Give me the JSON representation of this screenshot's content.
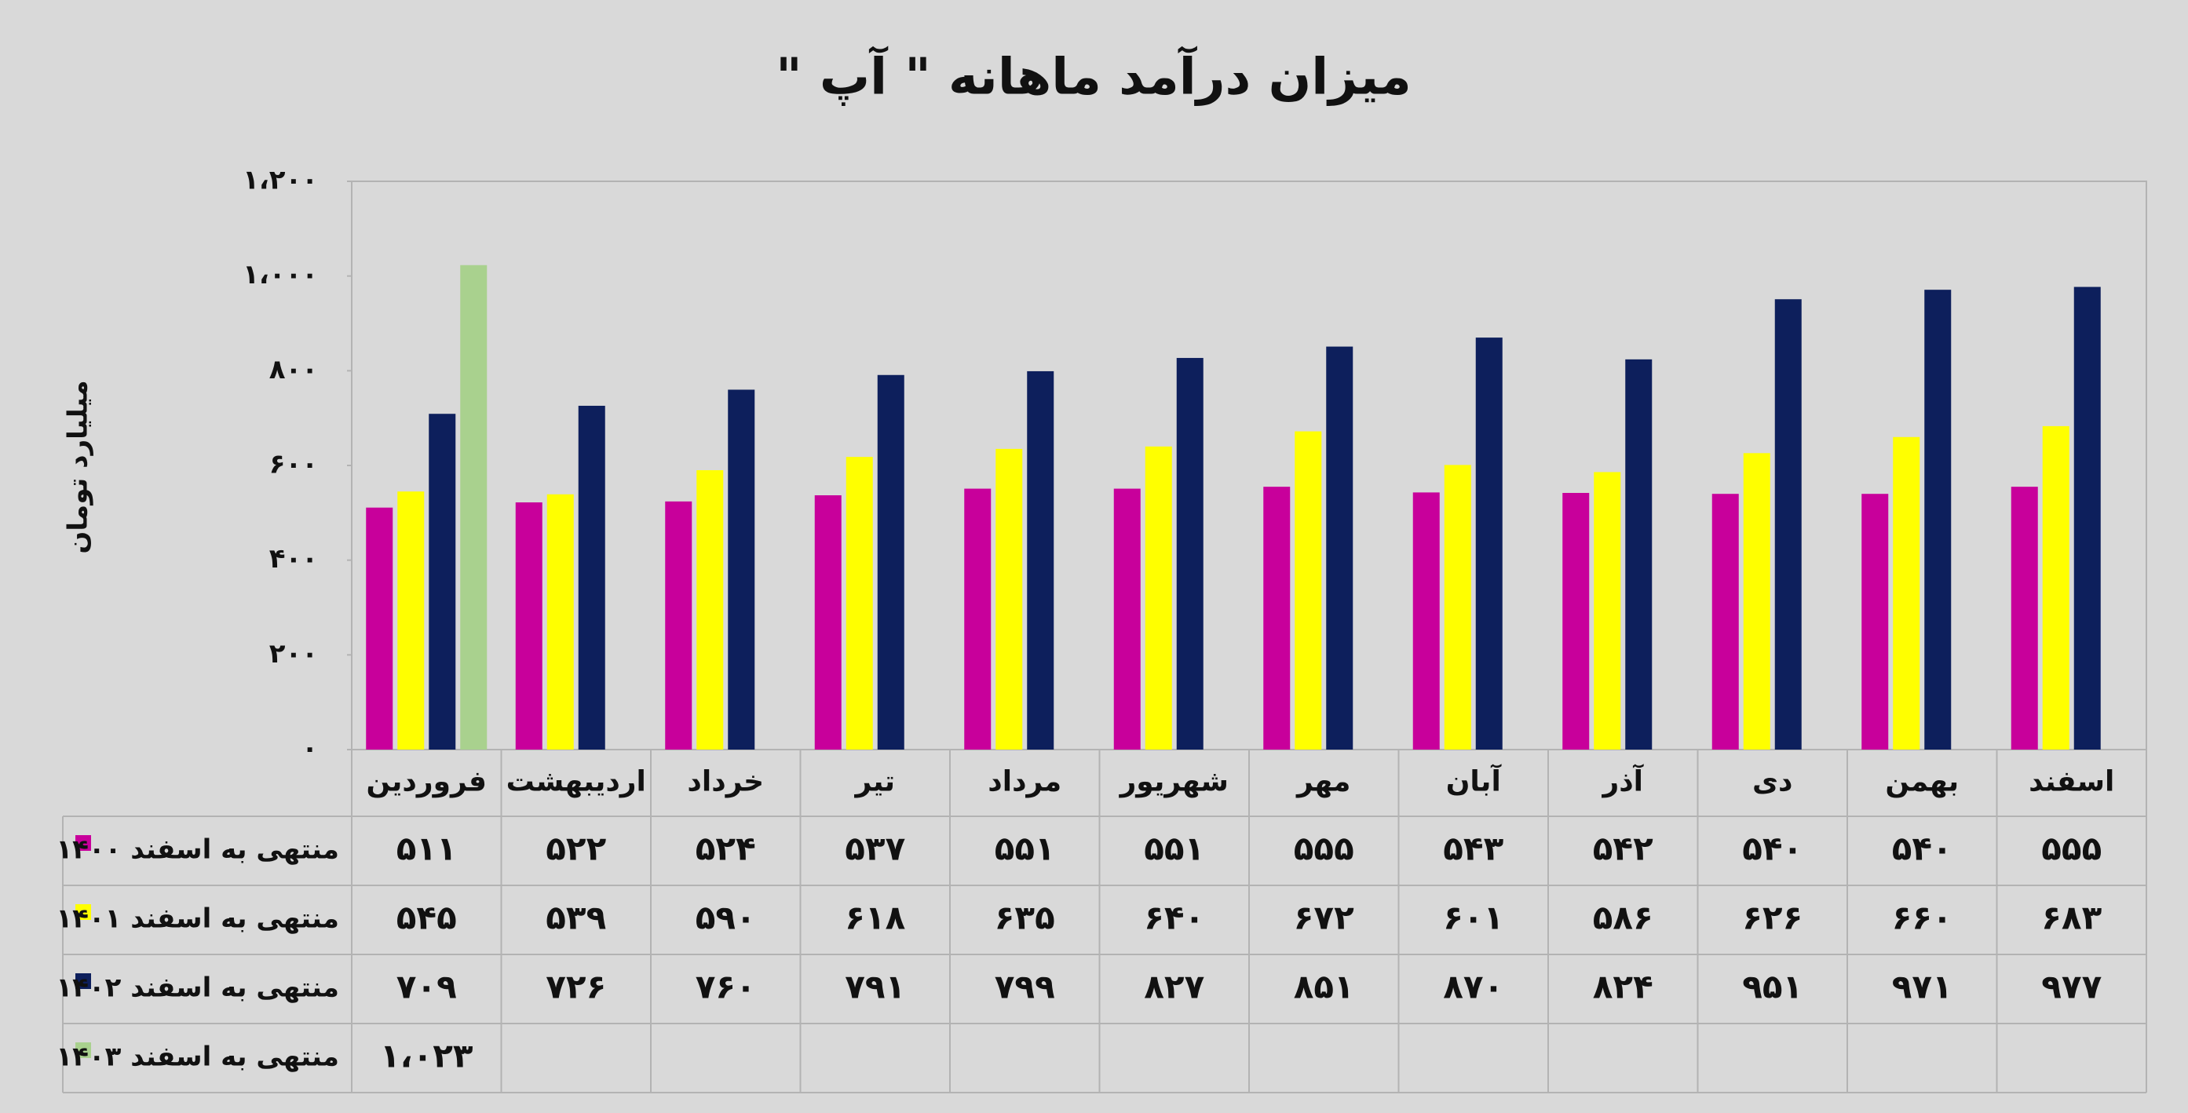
{
  "chart_data": {
    "type": "bar",
    "title": "میزان درآمد ماهانه \" آپ \"",
    "y_label": "میلیارد تومان",
    "categories": [
      "فروردین",
      "اردیبهشت",
      "خرداد",
      "تیر",
      "مرداد",
      "شهریور",
      "مهر",
      "آبان",
      "آذر",
      "دی",
      "بهمن",
      "اسفند"
    ],
    "series": [
      {
        "name": "منتهی به اسفند ۱۴۰۰",
        "color": "#c8009b",
        "values": [
          511,
          522,
          524,
          537,
          551,
          551,
          555,
          543,
          542,
          540,
          540,
          555
        ],
        "value_labels": [
          "۵۱۱",
          "۵۲۲",
          "۵۲۴",
          "۵۳۷",
          "۵۵۱",
          "۵۵۱",
          "۵۵۵",
          "۵۴۳",
          "۵۴۲",
          "۵۴۰",
          "۵۴۰",
          "۵۵۵"
        ]
      },
      {
        "name": "منتهی به اسفند ۱۴۰۱",
        "color": "#ffff00",
        "values": [
          545,
          539,
          590,
          618,
          635,
          640,
          672,
          601,
          586,
          626,
          660,
          683
        ],
        "value_labels": [
          "۵۴۵",
          "۵۳۹",
          "۵۹۰",
          "۶۱۸",
          "۶۳۵",
          "۶۴۰",
          "۶۷۲",
          "۶۰۱",
          "۵۸۶",
          "۶۲۶",
          "۶۶۰",
          "۶۸۳"
        ]
      },
      {
        "name": "منتهی به اسفند ۱۴۰۲",
        "color": "#0d1f5c",
        "values": [
          709,
          726,
          760,
          791,
          799,
          827,
          851,
          870,
          824,
          951,
          971,
          977
        ],
        "value_labels": [
          "۷۰۹",
          "۷۲۶",
          "۷۶۰",
          "۷۹۱",
          "۷۹۹",
          "۸۲۷",
          "۸۵۱",
          "۸۷۰",
          "۸۲۴",
          "۹۵۱",
          "۹۷۱",
          "۹۷۷"
        ]
      },
      {
        "name": "منتهی به اسفند ۱۴۰۳",
        "color": "#a9d18e",
        "values": [
          1023,
          null,
          null,
          null,
          null,
          null,
          null,
          null,
          null,
          null,
          null,
          null
        ],
        "value_labels": [
          "۱،۰۲۳",
          null,
          null,
          null,
          null,
          null,
          null,
          null,
          null,
          null,
          null,
          null
        ]
      }
    ],
    "ylim": [
      0,
      1200
    ],
    "yticks": [
      {
        "value": 0,
        "label": "۰"
      },
      {
        "value": 200,
        "label": "۲۰۰"
      },
      {
        "value": 400,
        "label": "۴۰۰"
      },
      {
        "value": 600,
        "label": "۶۰۰"
      },
      {
        "value": 800,
        "label": "۸۰۰"
      },
      {
        "value": 1000,
        "label": "۱،۰۰۰"
      },
      {
        "value": 1200,
        "label": "۱،۲۰۰"
      }
    ],
    "grid": false
  }
}
